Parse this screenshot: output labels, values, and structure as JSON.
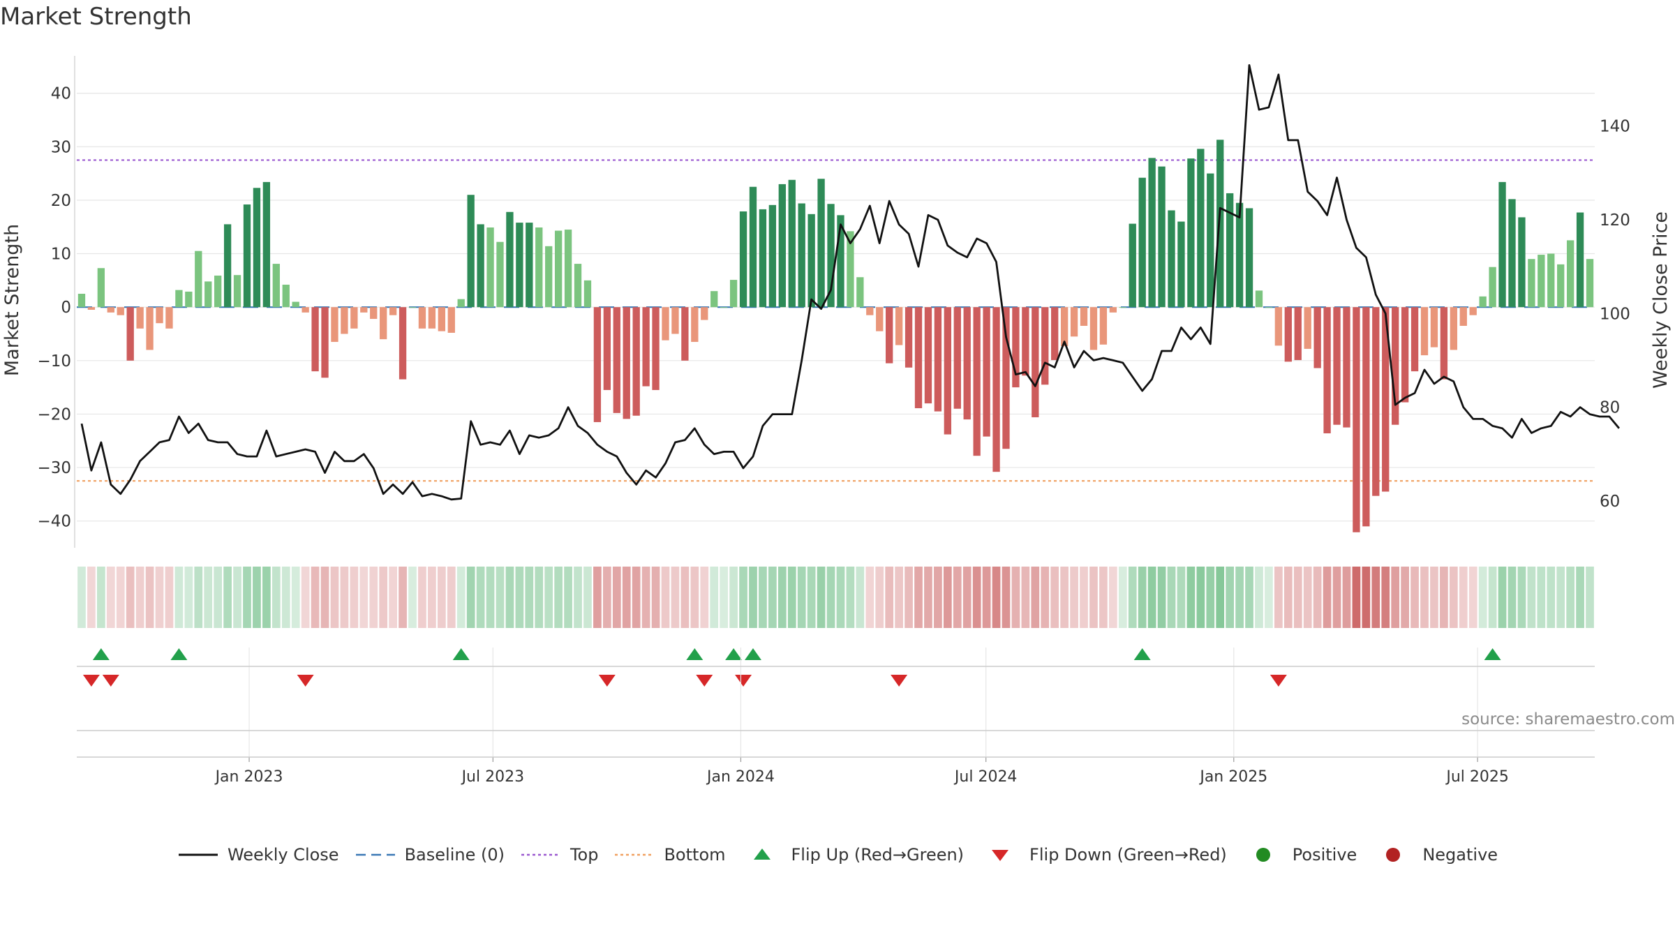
{
  "title": "Market Strength",
  "source": "source: sharemaestro.com",
  "legend": [
    {
      "label": "Weekly Close",
      "kind": "line",
      "color": "#111111"
    },
    {
      "label": "Baseline (0)",
      "kind": "dash",
      "color": "#3a78b5"
    },
    {
      "label": "Top",
      "kind": "dot",
      "color": "#9b59d0"
    },
    {
      "label": "Bottom",
      "kind": "dot",
      "color": "#f0a060"
    },
    {
      "label": "Flip Up (Red→Green)",
      "kind": "up",
      "color": "#22a04b"
    },
    {
      "label": "Flip Down (Green→Red)",
      "kind": "down",
      "color": "#d62728"
    },
    {
      "label": "Positive",
      "kind": "circle",
      "color": "#228b22"
    },
    {
      "label": "Negative",
      "kind": "circle",
      "color": "#b22222"
    }
  ],
  "chart_data": {
    "type": "bar",
    "title": "Market Strength",
    "ylabel": "Market Strength",
    "y2label": "Weekly Close Price",
    "ylim": [
      -45,
      47
    ],
    "y2lim": [
      50,
      155
    ],
    "yticks": [
      -40,
      -30,
      -20,
      -10,
      0,
      10,
      20,
      30,
      40
    ],
    "y2ticks": [
      60,
      80,
      100,
      120,
      140
    ],
    "xticks": [
      "Jan 2023",
      "Jul 2023",
      "Jan 2024",
      "Jul 2024",
      "Jan 2025",
      "Jul 2025"
    ],
    "xtick_dates": [
      "2023-01-01",
      "2023-07-01",
      "2024-01-01",
      "2024-07-01",
      "2025-01-01",
      "2025-07-01"
    ],
    "start_date": "2022-08-26",
    "end_date": "2025-09-26",
    "top_line": 27.5,
    "bottom_line": -32.5,
    "baseline": 0,
    "grid": true,
    "strength": [
      2.5,
      -0.5,
      7.3,
      -1,
      -1.5,
      -10,
      -4,
      -8,
      -3,
      -4,
      3.2,
      2.9,
      10.5,
      4.8,
      5.9,
      15.5,
      6,
      19.2,
      22.3,
      23.4,
      8.1,
      4.2,
      1,
      -1,
      -12,
      -13.2,
      -6.5,
      -5,
      -4,
      -1,
      -2.2,
      -6,
      -1.5,
      -13.5,
      0,
      -4,
      -4,
      -4.5,
      -4.8,
      1.5,
      21,
      15.5,
      14.9,
      12.2,
      17.8,
      15.8,
      15.8,
      14.9,
      11.4,
      14.3,
      14.5,
      8.1,
      5,
      -21.5,
      -15.5,
      -19.8,
      -20.9,
      -20.3,
      -14.8,
      -15.5,
      -6.2,
      -5,
      -10,
      -6.5,
      -2.4,
      3,
      0,
      5.1,
      17.9,
      22.5,
      18.3,
      19.1,
      23,
      23.8,
      19.4,
      17.4,
      24,
      19.3,
      17.2,
      14.2,
      5.6,
      -1.5,
      -4.5,
      -10.5,
      -7.1,
      -11.3,
      -18.9,
      -18,
      -19.5,
      -23.8,
      -19,
      -21,
      -27.8,
      -24.2,
      -30.8,
      -26.5,
      -15,
      -12.8,
      -20.6,
      -14.5,
      -9.9,
      -7.3,
      -5.5,
      -3.5,
      -8,
      -7,
      -1,
      0,
      15.6,
      24.2,
      27.9,
      26.3,
      18.1,
      16,
      27.8,
      29.6,
      25,
      31.3,
      21.3,
      19.5,
      18.5,
      3.1,
      0,
      -7.2,
      -10.2,
      -9.9,
      -7.8,
      -11.4,
      -23.6,
      -22,
      -22.5,
      -42.1,
      -41,
      -35.3,
      -34.5,
      -22,
      -17.8,
      -12,
      -9,
      -7.5,
      -13.5,
      -8,
      -3.5,
      -1.5,
      2,
      7.5,
      23.4,
      20.2,
      16.8,
      9,
      9.8,
      10,
      8,
      12.5,
      17.7,
      9
    ],
    "weekly_close": [
      76.5,
      66.5,
      72.5,
      63.5,
      61.5,
      64.5,
      68.5,
      70.5,
      72.5,
      73,
      78,
      74.5,
      76.5,
      73,
      72.5,
      72.5,
      70,
      69.5,
      69.5,
      75,
      69.5,
      70,
      70.5,
      71,
      70.5,
      66,
      70.5,
      68.5,
      68.5,
      70,
      67,
      61.5,
      63.5,
      61.5,
      64,
      61,
      61.5,
      61,
      60.3,
      60.5,
      77,
      72,
      72.5,
      72,
      75,
      70,
      74,
      73.5,
      74,
      75.5,
      80,
      76,
      74.5,
      72,
      70.5,
      69.5,
      66,
      63.5,
      66.5,
      65,
      68,
      72.5,
      73,
      75.5,
      72,
      70,
      70.5,
      70.5,
      67,
      69.5,
      76,
      78.5,
      78.5,
      78.5,
      90,
      103,
      101,
      105,
      119,
      115,
      118,
      123,
      115,
      124,
      119,
      117,
      110,
      121,
      120,
      114.5,
      113,
      112,
      116,
      115,
      111,
      95,
      87,
      87.5,
      84.5,
      89.5,
      88.5,
      94,
      88.5,
      92,
      90,
      90.5,
      90,
      89.5,
      86.5,
      83.5,
      86,
      92,
      92,
      97,
      94.5,
      97,
      93.5,
      122.5,
      121.5,
      120.5,
      153,
      143.5,
      144,
      151,
      137,
      137,
      126,
      124,
      121,
      129,
      120,
      114,
      112,
      104,
      100,
      80.5,
      82,
      83,
      88,
      85,
      86.5,
      85.5,
      80,
      77.5,
      77.5,
      76,
      75.5,
      73.5,
      77.5,
      74.5,
      75.5,
      76,
      79,
      78,
      80,
      78.5,
      78,
      78,
      75.5
    ],
    "flip_up_indices": [
      2,
      10,
      39,
      63,
      67,
      69,
      109,
      145
    ],
    "flip_down_indices": [
      1,
      3,
      23,
      54,
      64,
      68,
      84,
      123
    ],
    "series": [
      {
        "name": "Weekly Close",
        "values_key": "weekly_close"
      },
      {
        "name": "Baseline (0)"
      },
      {
        "name": "Top",
        "value": 27.5
      },
      {
        "name": "Bottom",
        "value": -32.5
      }
    ]
  }
}
